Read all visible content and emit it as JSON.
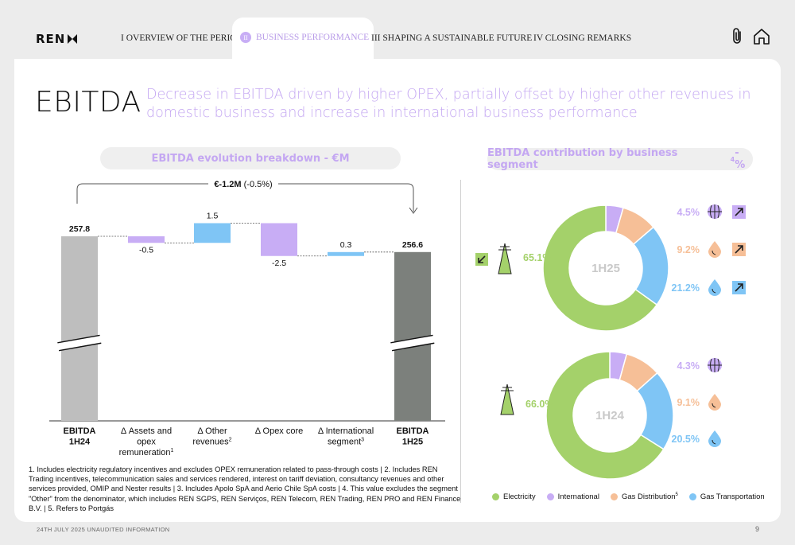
{
  "header": {
    "logo": "REN",
    "tabs": [
      {
        "label": "I  OVERVIEW OF THE PERIOD"
      },
      {
        "num": "II",
        "label": "BUSINESS PERFORMANCE",
        "active": true
      },
      {
        "label": "III SHAPING A SUSTAINABLE FUTURE"
      },
      {
        "label": "IV CLOSING REMARKS"
      }
    ]
  },
  "slide": {
    "title": "EBITDA",
    "subtitle": "Decrease in EBITDA driven by higher OPEX, partially offset by higher other revenues in domestic business and increase in international business performance",
    "left_header": "EBITDA evolution breakdown - €M",
    "right_header_main": "EBITDA contribution by business segment",
    "right_header_sup": "4",
    "right_header_tail": " - %"
  },
  "colors": {
    "accent": "#c4a7f2",
    "electricity": "#a4d16a",
    "international": "#c8adf5",
    "gas_distribution": "#f6bf97",
    "gas_transportation": "#7fc5f5",
    "ebitda_1h24": "#bebebe",
    "ebitda_1h25": "#7c807c",
    "increase": "#7fc5f5",
    "decrease": "#c8adf5"
  },
  "chart_data": [
    {
      "type": "bar",
      "subtype": "waterfall",
      "title": "EBITDA evolution breakdown - €M",
      "categories": [
        {
          "main": "EBITDA",
          "line2": "1H24",
          "bold": true
        },
        {
          "main": "Δ Assets and",
          "line2": "opex",
          "line3": "remuneration",
          "sup": "1"
        },
        {
          "main": "Δ Other",
          "line2": "revenues",
          "sup": "2"
        },
        {
          "main": "Δ Opex core"
        },
        {
          "main": "Δ International",
          "line2": "segment",
          "sup": "3"
        },
        {
          "main": "EBITDA",
          "line2": "1H25",
          "bold": true
        }
      ],
      "values": [
        257.8,
        -0.5,
        1.5,
        -2.5,
        0.3,
        256.6
      ],
      "labels": [
        "257.8",
        "-0.5",
        "1.5",
        "-2.5",
        "0.3",
        "256.6"
      ],
      "measures": [
        "total",
        "relative",
        "relative",
        "relative",
        "relative",
        "total"
      ],
      "annotation_bold": "€-1.2M",
      "annotation_rest": " (-0.5%)",
      "axis_break": true
    },
    {
      "type": "pie",
      "subtype": "donut",
      "center_label": "1H25",
      "slices": [
        {
          "name": "Electricity",
          "value": 65.1,
          "label": "65.1%"
        },
        {
          "name": "International",
          "value": 4.5,
          "label": "4.5%",
          "trend": "up"
        },
        {
          "name": "Gas Distribution",
          "value": 9.2,
          "label": "9.2%",
          "trend": "up"
        },
        {
          "name": "Gas Transportation",
          "value": 21.2,
          "label": "21.2%",
          "trend": "up"
        }
      ],
      "electricity_trend": "down"
    },
    {
      "type": "pie",
      "subtype": "donut",
      "center_label": "1H24",
      "slices": [
        {
          "name": "Electricity",
          "value": 66.0,
          "label": "66.0%"
        },
        {
          "name": "International",
          "value": 4.3,
          "label": "4.3%"
        },
        {
          "name": "Gas Distribution",
          "value": 9.1,
          "label": "9.1%"
        },
        {
          "name": "Gas Transportation",
          "value": 20.5,
          "label": "20.5%"
        }
      ]
    }
  ],
  "legend": [
    {
      "label": "Electricity",
      "color": "#a4d16a"
    },
    {
      "label": "International",
      "color": "#c8adf5"
    },
    {
      "label": "Gas Distribution",
      "sup": "5",
      "color": "#f6bf97"
    },
    {
      "label": "Gas Transportation",
      "color": "#7fc5f5"
    }
  ],
  "footnotes": "1. Includes electricity regulatory incentives and excludes OPEX remuneration related to pass-through costs | 2. Includes REN Trading incentives, telecommunication sales and services rendered, interest on tariff deviation, consultancy revenues and other services provided, OMIP and Nester results | 3. Includes Apolo SpA and Aerio Chile SpA costs | 4. This value excludes the segment \"Other\" from the denominator, which includes REN SGPS, REN Serviços, REN Telecom, REN Trading, REN PRO and REN Finance B.V.  | 5. Refers to Portgás",
  "footer": {
    "date": "24TH JULY 2025 UNAUDITED INFORMATION",
    "page": "9"
  }
}
